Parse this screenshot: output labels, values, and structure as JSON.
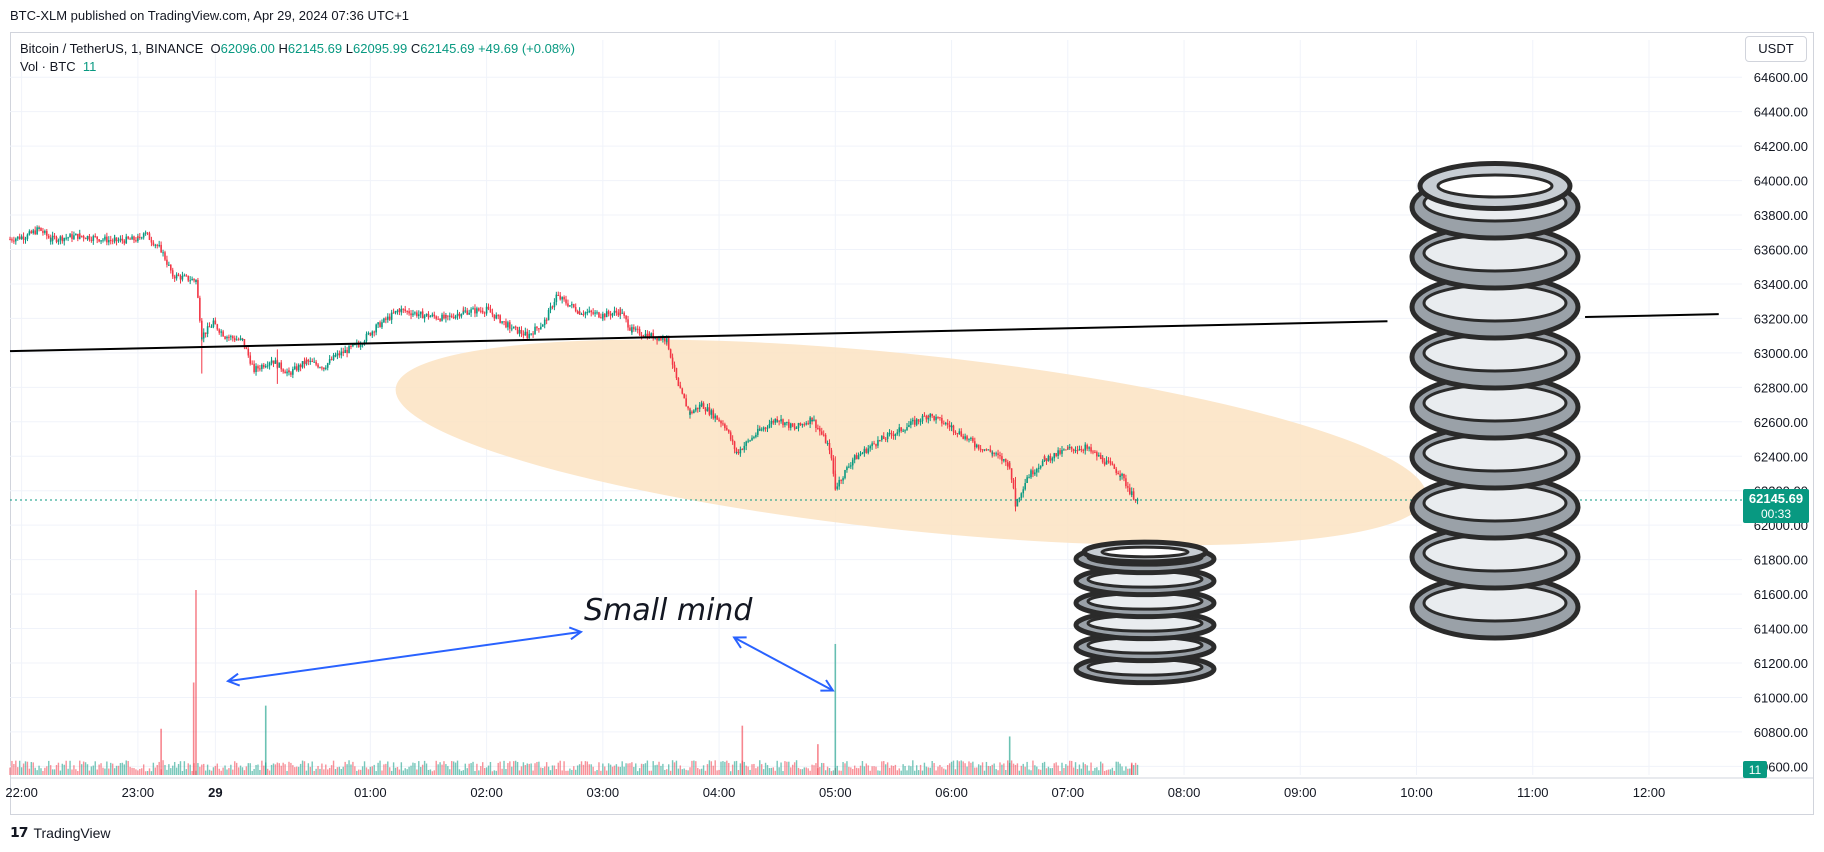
{
  "header": {
    "caption": "BTC-XLM published on TradingView.com, Apr 29, 2024 07:36 UTC+1"
  },
  "legend": {
    "symbol": "Bitcoin / TetherUS, 1, BINANCE",
    "open_label": "O",
    "open": "62096.00",
    "high_label": "H",
    "high": "62145.69",
    "low_label": "L",
    "low": "62095.99",
    "close_label": "C",
    "close": "62145.69",
    "change": "+49.69 (+0.08%)",
    "volume_label": "Vol · BTC",
    "volume": "11"
  },
  "currency": "USDT",
  "last_price": {
    "price": "62145.69",
    "countdown": "00:33",
    "volume_badge": "11"
  },
  "annotation": {
    "text": "Small mind"
  },
  "footer": {
    "brand": "TradingView"
  },
  "colors": {
    "up": "#089981",
    "down": "#f23645",
    "highlight": "#fbe3c2",
    "arrow": "#2962ff",
    "trendline": "#000000"
  },
  "chart_data": {
    "type": "line",
    "title": "",
    "xlabel": "",
    "ylabel": "",
    "x_ticks": [
      "22:00",
      "23:00",
      "29",
      "01:00",
      "02:00",
      "03:00",
      "04:00",
      "05:00",
      "06:00",
      "07:00",
      "08:00",
      "09:00",
      "10:00",
      "11:00",
      "12:00"
    ],
    "x_tick_hours": [
      22,
      23,
      23.667,
      25,
      26,
      27,
      28,
      29,
      30,
      31,
      32,
      33,
      34,
      35,
      36
    ],
    "y_ticks": [
      60600,
      60800,
      61000,
      61200,
      61400,
      61600,
      61800,
      62000,
      62200,
      62400,
      62600,
      62800,
      63000,
      63200,
      63400,
      63600,
      63800,
      64000,
      64200,
      64400,
      64600
    ],
    "ylim": [
      60550,
      64700
    ],
    "xlim_hours": [
      21.9,
      36.8
    ],
    "grid": true,
    "series": [
      {
        "values": [
          [
            21.9,
            63660
          ],
          [
            22.05,
            63680
          ],
          [
            22.15,
            63720
          ],
          [
            22.25,
            63660
          ],
          [
            22.5,
            63680
          ],
          [
            22.8,
            63650
          ],
          [
            23.0,
            63660
          ],
          [
            23.05,
            63700
          ],
          [
            23.2,
            63600
          ],
          [
            23.3,
            63450
          ],
          [
            23.5,
            63420
          ],
          [
            23.55,
            63100
          ],
          [
            23.65,
            63170
          ],
          [
            23.75,
            63100
          ],
          [
            23.9,
            63070
          ],
          [
            24.0,
            62900
          ],
          [
            24.15,
            62960
          ],
          [
            24.3,
            62880
          ],
          [
            24.45,
            62950
          ],
          [
            24.6,
            62920
          ],
          [
            24.7,
            62980
          ],
          [
            24.9,
            63050
          ],
          [
            25.05,
            63150
          ],
          [
            25.25,
            63250
          ],
          [
            25.45,
            63220
          ],
          [
            25.65,
            63200
          ],
          [
            25.8,
            63240
          ],
          [
            26.0,
            63250
          ],
          [
            26.2,
            63150
          ],
          [
            26.35,
            63100
          ],
          [
            26.5,
            63180
          ],
          [
            26.6,
            63330
          ],
          [
            26.8,
            63240
          ],
          [
            27.0,
            63220
          ],
          [
            27.15,
            63240
          ],
          [
            27.25,
            63130
          ],
          [
            27.4,
            63100
          ],
          [
            27.55,
            63080
          ],
          [
            27.65,
            62800
          ],
          [
            27.75,
            62650
          ],
          [
            27.85,
            62700
          ],
          [
            28.05,
            62580
          ],
          [
            28.15,
            62420
          ],
          [
            28.35,
            62550
          ],
          [
            28.5,
            62620
          ],
          [
            28.65,
            62560
          ],
          [
            28.8,
            62620
          ],
          [
            28.95,
            62450
          ],
          [
            29.0,
            62220
          ],
          [
            29.15,
            62380
          ],
          [
            29.35,
            62480
          ],
          [
            29.55,
            62550
          ],
          [
            29.8,
            62640
          ],
          [
            30.0,
            62570
          ],
          [
            30.2,
            62470
          ],
          [
            30.35,
            62420
          ],
          [
            30.5,
            62350
          ],
          [
            30.55,
            62120
          ],
          [
            30.65,
            62280
          ],
          [
            30.8,
            62380
          ],
          [
            31.0,
            62440
          ],
          [
            31.15,
            62450
          ],
          [
            31.3,
            62380
          ],
          [
            31.45,
            62300
          ],
          [
            31.55,
            62180
          ],
          [
            31.6,
            62146
          ]
        ]
      }
    ],
    "volume": {
      "max_axis": 1200,
      "spikes": [
        [
          23.5,
          1200
        ],
        [
          23.48,
          600
        ],
        [
          24.1,
          450
        ],
        [
          23.2,
          300
        ],
        [
          28.2,
          320
        ],
        [
          29.0,
          850
        ],
        [
          28.85,
          200
        ],
        [
          31.55,
          80
        ],
        [
          30.5,
          250
        ]
      ],
      "baseline": 80
    },
    "trendline": [
      [
        21.9,
        63010
      ],
      [
        36.6,
        63225
      ]
    ],
    "highlight_ellipse": {
      "center": [
        29.65,
        62480
      ],
      "note": "consolidation region"
    }
  }
}
